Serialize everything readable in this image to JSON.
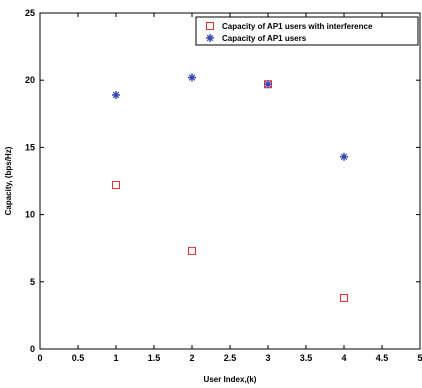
{
  "chart_data": {
    "type": "scatter",
    "title": "",
    "xlabel": "User Index,(k)",
    "ylabel": "Capacity, (bps/Hz)",
    "xlim": [
      0,
      5
    ],
    "ylim": [
      0,
      25
    ],
    "x_ticks": [
      "0",
      "0.5",
      "1",
      "1.5",
      "2",
      "2.5",
      "3",
      "3.5",
      "4",
      "4.5",
      "5"
    ],
    "y_ticks": [
      "0",
      "5",
      "10",
      "15",
      "20",
      "25"
    ],
    "grid": false,
    "legend_position": "top-right",
    "series": [
      {
        "name": "Capacity of AP1 users with interference",
        "marker": "square",
        "color": "#e03030",
        "x": [
          1,
          2,
          3,
          4
        ],
        "y": [
          12.2,
          7.3,
          19.7,
          3.8
        ]
      },
      {
        "name": "Capacity of AP1 users",
        "marker": "star",
        "color": "#3040b0",
        "x": [
          1,
          2,
          3,
          4
        ],
        "y": [
          18.9,
          20.2,
          19.7,
          14.3
        ]
      }
    ]
  }
}
